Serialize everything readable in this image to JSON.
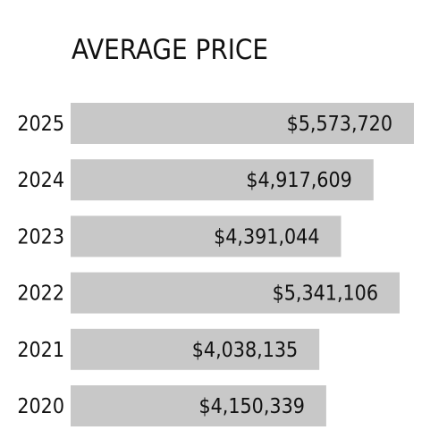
{
  "chart_data": {
    "type": "bar",
    "orientation": "horizontal",
    "title": "AVERAGE PRICE",
    "xlabel": "",
    "ylabel": "",
    "categories": [
      "2025",
      "2024",
      "2023",
      "2022",
      "2021",
      "2020"
    ],
    "values": [
      5573720,
      4917609,
      4391044,
      5341106,
      4038135,
      4150339
    ],
    "value_labels": [
      "$5,573,720",
      "$4,917,609",
      "$4,391,044",
      "$5,341,106",
      "$4,038,135",
      "$4,150,339"
    ],
    "grid": false,
    "legend": "none",
    "colors": {
      "bar": "#c8c8c8",
      "text": "#111111",
      "background": "#ffffff"
    }
  }
}
